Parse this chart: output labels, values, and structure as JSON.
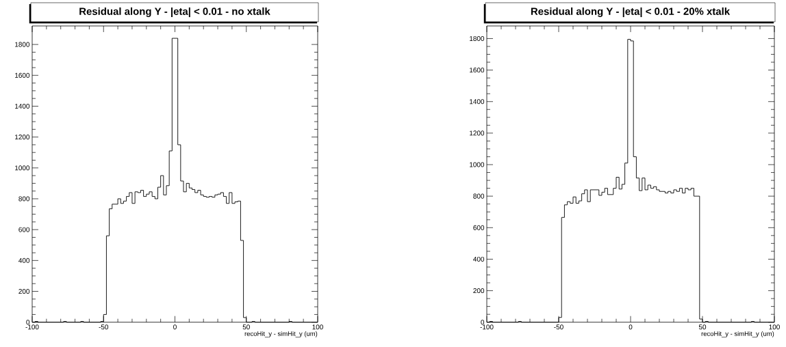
{
  "chart_data": [
    {
      "type": "histogram",
      "title": "Residual along Y - |eta| < 0.01 - no xtalk",
      "xlabel": "recoHit_y - simHit_y (um)",
      "color": "#000000",
      "bins": [
        -100,
        -98,
        -96,
        -94,
        -92,
        -90,
        -88,
        -86,
        -84,
        -82,
        -80,
        -78,
        -76,
        -74,
        -72,
        -70,
        -68,
        -66,
        -64,
        -62,
        -60,
        -58,
        -56,
        -54,
        -52,
        -50,
        -48,
        -46,
        -44,
        -42,
        -40,
        -38,
        -36,
        -34,
        -32,
        -30,
        -28,
        -26,
        -24,
        -22,
        -20,
        -18,
        -16,
        -14,
        -12,
        -10,
        -8,
        -6,
        -4,
        -2,
        0,
        2,
        4,
        6,
        8,
        10,
        12,
        14,
        16,
        18,
        20,
        22,
        24,
        26,
        28,
        30,
        32,
        34,
        36,
        38,
        40,
        42,
        44,
        46,
        48,
        50,
        52,
        54,
        56,
        58,
        60,
        62,
        64,
        66,
        68,
        70,
        72,
        74,
        76,
        78,
        80,
        82,
        84,
        86,
        88,
        90,
        92,
        94,
        96,
        98,
        100
      ],
      "values": [
        0,
        5,
        0,
        0,
        0,
        0,
        0,
        0,
        0,
        0,
        0,
        5,
        0,
        0,
        0,
        0,
        0,
        5,
        0,
        0,
        0,
        0,
        0,
        0,
        5,
        50,
        560,
        735,
        765,
        765,
        800,
        770,
        785,
        815,
        840,
        770,
        845,
        840,
        855,
        815,
        830,
        845,
        815,
        800,
        875,
        950,
        825,
        885,
        1110,
        1840,
        1840,
        1150,
        915,
        845,
        900,
        870,
        860,
        840,
        855,
        825,
        815,
        810,
        815,
        810,
        825,
        830,
        840,
        815,
        770,
        840,
        770,
        780,
        785,
        530,
        30,
        0,
        0,
        5,
        0,
        0,
        0,
        0,
        0,
        0,
        0,
        0,
        0,
        0,
        0,
        0,
        5,
        0,
        0,
        0,
        0,
        0,
        0,
        0,
        0,
        0
      ],
      "xlim": [
        -100,
        100
      ],
      "ylim": [
        0,
        1920
      ],
      "xticks": [
        -100,
        -50,
        0,
        50,
        100
      ],
      "yticks": [
        0,
        200,
        400,
        600,
        800,
        1000,
        1200,
        1400,
        1600,
        1800
      ]
    },
    {
      "type": "histogram",
      "title": "Residual along Y - |eta| < 0.01 - 20% xtalk",
      "xlabel": "recoHit_y - simHit_y (um)",
      "color": "#000000",
      "bins": [
        -100,
        -98,
        -96,
        -94,
        -92,
        -90,
        -88,
        -86,
        -84,
        -82,
        -80,
        -78,
        -76,
        -74,
        -72,
        -70,
        -68,
        -66,
        -64,
        -62,
        -60,
        -58,
        -56,
        -54,
        -52,
        -50,
        -48,
        -46,
        -44,
        -42,
        -40,
        -38,
        -36,
        -34,
        -32,
        -30,
        -28,
        -26,
        -24,
        -22,
        -20,
        -18,
        -16,
        -14,
        -12,
        -10,
        -8,
        -6,
        -4,
        -2,
        0,
        2,
        4,
        6,
        8,
        10,
        12,
        14,
        16,
        18,
        20,
        22,
        24,
        26,
        28,
        30,
        32,
        34,
        36,
        38,
        40,
        42,
        44,
        46,
        48,
        50,
        52,
        54,
        56,
        58,
        60,
        62,
        64,
        66,
        68,
        70,
        72,
        74,
        76,
        78,
        80,
        82,
        84,
        86,
        88,
        90,
        92,
        94,
        96,
        98,
        100
      ],
      "values": [
        0,
        5,
        0,
        0,
        0,
        0,
        0,
        0,
        0,
        0,
        0,
        5,
        0,
        0,
        0,
        0,
        0,
        0,
        0,
        0,
        0,
        0,
        0,
        0,
        0,
        30,
        665,
        745,
        765,
        755,
        795,
        755,
        770,
        815,
        840,
        765,
        840,
        840,
        840,
        805,
        825,
        850,
        810,
        810,
        850,
        920,
        845,
        875,
        1010,
        1795,
        1785,
        1050,
        915,
        835,
        915,
        840,
        870,
        850,
        860,
        840,
        830,
        830,
        820,
        830,
        820,
        840,
        830,
        850,
        820,
        850,
        840,
        850,
        800,
        800,
        20,
        0,
        5,
        0,
        0,
        0,
        0,
        0,
        0,
        0,
        0,
        0,
        0,
        0,
        0,
        0,
        0,
        0,
        5,
        0,
        0,
        0,
        0,
        0,
        0,
        0
      ],
      "xlim": [
        -100,
        100
      ],
      "ylim": [
        0,
        1880
      ],
      "xticks": [
        -100,
        -50,
        0,
        50,
        100
      ],
      "yticks": [
        0,
        200,
        400,
        600,
        800,
        1000,
        1200,
        1400,
        1600,
        1800
      ]
    }
  ]
}
